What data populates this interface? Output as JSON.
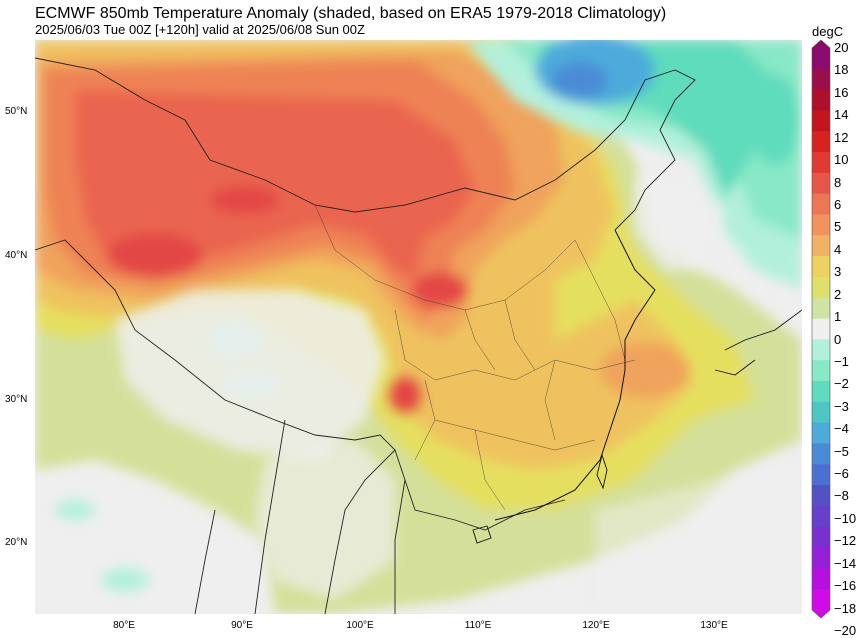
{
  "header": {
    "title": "ECMWF 850mb Temperature Anomaly (shaded, based on ERA5 1979-2018 Climatology)",
    "subtitle": "2025/06/03 Tue 00Z [+120h] valid at 2025/06/08 Sun 00Z"
  },
  "map": {
    "lat_labels": [
      "50°N",
      "40°N",
      "30°N",
      "20°N"
    ],
    "lon_labels": [
      "80°E",
      "90°E",
      "100°E",
      "110°E",
      "120°E",
      "130°E"
    ],
    "colors": {
      "neutral": "#efefef",
      "warm": [
        "#d4e09a",
        "#e5df5e",
        "#efc25f",
        "#f0a35c",
        "#ee8254",
        "#ea6550",
        "#e34645"
      ],
      "cool": [
        "#b3f0dc",
        "#88e8c7",
        "#5fdcbb",
        "#4dc7c4",
        "#4daadb",
        "#4b8bd6",
        "#5a6cc8",
        "#6d4fc2"
      ],
      "border": "#222222"
    }
  },
  "colorbar": {
    "unit": "degC",
    "labels": [
      "20",
      "18",
      "16",
      "14",
      "12",
      "10",
      "8",
      "6",
      "5",
      "4",
      "3",
      "2",
      "1",
      "0",
      "−1",
      "−2",
      "−3",
      "−4",
      "−5",
      "−6",
      "−8",
      "−10",
      "−12",
      "−14",
      "−16",
      "−18",
      "−20"
    ],
    "colors": [
      "#8b0a6e",
      "#9a0f4b",
      "#ad0f2d",
      "#c2161e",
      "#d6231f",
      "#e13a34",
      "#e6564a",
      "#ec7656",
      "#f0935c",
      "#f2b264",
      "#eed261",
      "#dfe06a",
      "#cfe3a3",
      "#efefef",
      "#b3f0dc",
      "#88e8c7",
      "#5fdcbb",
      "#4dc7c4",
      "#4daadb",
      "#4b8bd6",
      "#4e6fd2",
      "#5352c3",
      "#6640c8",
      "#7a2fcf",
      "#9320d8",
      "#b411e0",
      "#d30ae8"
    ]
  }
}
